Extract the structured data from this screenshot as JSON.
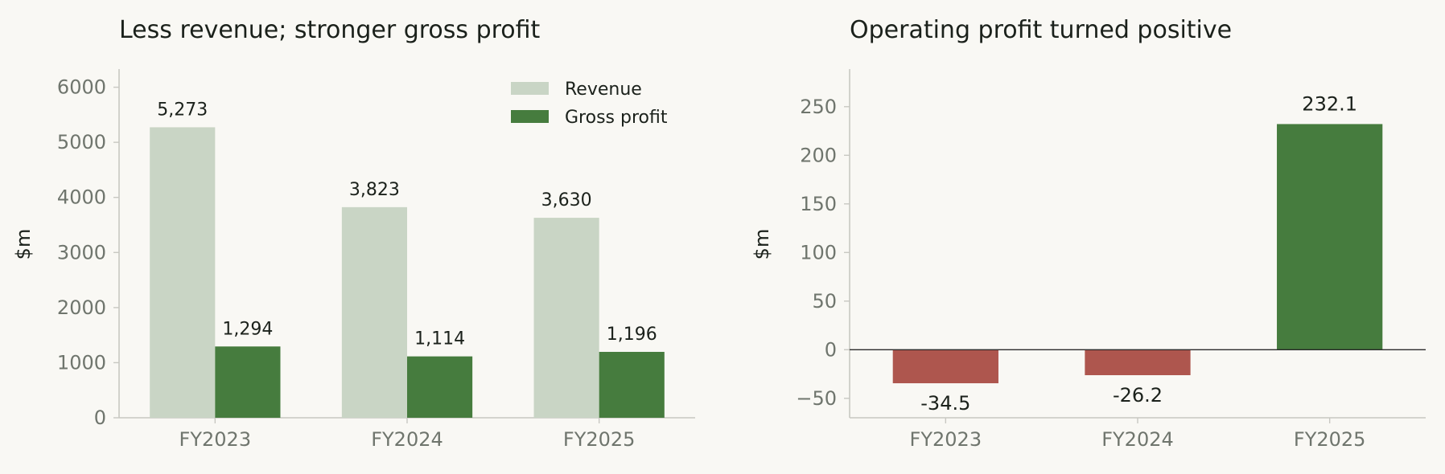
{
  "chart_data": [
    {
      "type": "bar",
      "title": "Less revenue; stronger gross profit",
      "ylabel": "$m",
      "categories": [
        "FY2023",
        "FY2024",
        "FY2025"
      ],
      "series": [
        {
          "name": "Revenue",
          "values": [
            5273,
            3823,
            3630
          ],
          "labels": [
            "5,273",
            "3,823",
            "3,630"
          ],
          "color": "#c9d5c5"
        },
        {
          "name": "Gross profit",
          "values": [
            1294,
            1114,
            1196
          ],
          "labels": [
            "1,294",
            "1,114",
            "1,196"
          ],
          "color": "#467c3e"
        }
      ],
      "ylim": [
        0,
        6300
      ],
      "yticks": [
        0,
        1000,
        2000,
        3000,
        4000,
        5000,
        6000
      ],
      "ytick_labels": [
        "0",
        "1000",
        "2000",
        "3000",
        "4000",
        "5000",
        "6000"
      ],
      "legend": "top-right",
      "grid": false
    },
    {
      "type": "bar",
      "title": "Operating profit turned positive",
      "ylabel": "$m",
      "categories": [
        "FY2023",
        "FY2024",
        "FY2025"
      ],
      "values": [
        -34.5,
        -26.2,
        232.1
      ],
      "labels": [
        "-34.5",
        "-26.2",
        "232.1"
      ],
      "colors": {
        "positive": "#467c3e",
        "negative": "#ae564e"
      },
      "ylim": [
        -70,
        287
      ],
      "yticks": [
        -50,
        0,
        50,
        100,
        150,
        200,
        250
      ],
      "ytick_labels": [
        "−50",
        "0",
        "50",
        "100",
        "150",
        "200",
        "250"
      ],
      "zero_line": true,
      "grid": false
    }
  ]
}
